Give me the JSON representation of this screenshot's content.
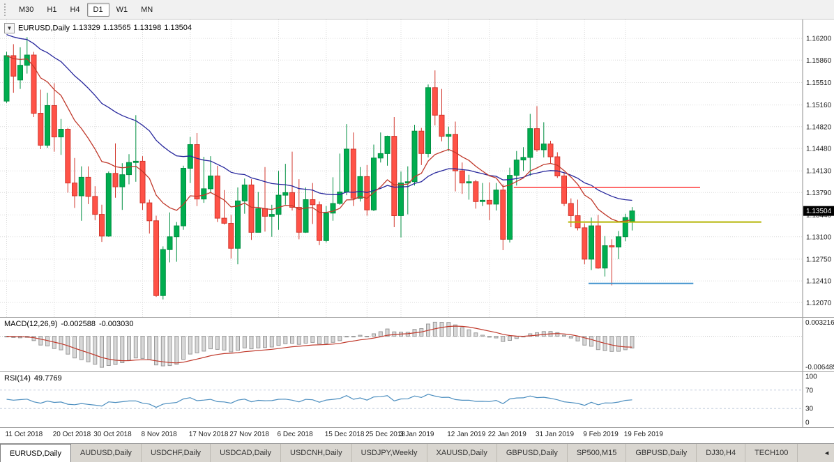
{
  "toolbar": {
    "timeframes": [
      {
        "label": "M30",
        "active": false
      },
      {
        "label": "H1",
        "active": false
      },
      {
        "label": "H4",
        "active": false
      },
      {
        "label": "D1",
        "active": true
      },
      {
        "label": "W1",
        "active": false
      },
      {
        "label": "MN",
        "active": false
      }
    ]
  },
  "chart_header": {
    "dropdown_icon": "▼",
    "symbol": "EURUSD,Daily",
    "open": "1.13329",
    "high": "1.13565",
    "low": "1.13198",
    "close": "1.13504"
  },
  "price_axis": {
    "labels": [
      "1.16200",
      "1.15860",
      "1.15510",
      "1.15160",
      "1.14820",
      "1.14480",
      "1.14130",
      "1.13790",
      "1.13440",
      "1.13100",
      "1.12750",
      "1.12410",
      "1.12070"
    ],
    "badge": "1.13504",
    "badge_bg": "#000000",
    "badge_fg": "#ffffff"
  },
  "time_axis": {
    "labels": [
      {
        "text": "11 Oct 2018",
        "candle_index": 0
      },
      {
        "text": "20 Oct 2018",
        "candle_index": 7
      },
      {
        "text": "30 Oct 2018",
        "candle_index": 13
      },
      {
        "text": "8 Nov 2018",
        "candle_index": 20
      },
      {
        "text": "17 Nov 2018",
        "candle_index": 27
      },
      {
        "text": "27 Nov 2018",
        "candle_index": 33
      },
      {
        "text": "6 Dec 2018",
        "candle_index": 40
      },
      {
        "text": "15 Dec 2018",
        "candle_index": 47
      },
      {
        "text": "25 Dec 2018",
        "candle_index": 53
      },
      {
        "text": "3 Jan 2019",
        "candle_index": 58
      },
      {
        "text": "12 Jan 2019",
        "candle_index": 65
      },
      {
        "text": "22 Jan 2019",
        "candle_index": 71
      },
      {
        "text": "31 Jan 2019",
        "candle_index": 78
      },
      {
        "text": "9 Feb 2019",
        "candle_index": 85
      },
      {
        "text": "19 Feb 2019",
        "candle_index": 91
      }
    ]
  },
  "chart_data": {
    "type": "candlestick",
    "title": "EURUSD,Daily",
    "ylim": [
      1.11845,
      1.16495
    ],
    "colors": {
      "up_fill": "#00AD4F",
      "up_stroke": "#008F41",
      "down_fill": "#FF5247",
      "down_stroke": "#D2372D",
      "grid": "#dcdcdc",
      "background": "#ffffff"
    },
    "candles": [
      [
        1.1522,
        1.1599,
        1.1519,
        1.1593
      ],
      [
        1.1593,
        1.1611,
        1.1535,
        1.1561
      ],
      [
        1.1555,
        1.1606,
        1.1541,
        1.1578
      ],
      [
        1.1578,
        1.1622,
        1.1565,
        1.1594
      ],
      [
        1.1594,
        1.1599,
        1.1497,
        1.1503
      ],
      [
        1.1503,
        1.154,
        1.1447,
        1.1453
      ],
      [
        1.1453,
        1.1535,
        1.1449,
        1.1515
      ],
      [
        1.1515,
        1.155,
        1.1443,
        1.1466
      ],
      [
        1.1466,
        1.1494,
        1.1438,
        1.1478
      ],
      [
        1.1478,
        1.148,
        1.1379,
        1.1394
      ],
      [
        1.1394,
        1.1433,
        1.1355,
        1.1374
      ],
      [
        1.1374,
        1.142,
        1.1335,
        1.1403
      ],
      [
        1.1403,
        1.142,
        1.1361,
        1.1373
      ],
      [
        1.1373,
        1.1389,
        1.1336,
        1.1345
      ],
      [
        1.1345,
        1.136,
        1.1302,
        1.1311
      ],
      [
        1.1311,
        1.1412,
        1.131,
        1.1409
      ],
      [
        1.1409,
        1.1456,
        1.1371,
        1.1388
      ],
      [
        1.1388,
        1.1425,
        1.1352,
        1.1407
      ],
      [
        1.1407,
        1.1439,
        1.1392,
        1.1426
      ],
      [
        1.1426,
        1.15,
        1.1396,
        1.1428
      ],
      [
        1.1428,
        1.1436,
        1.1352,
        1.1363
      ],
      [
        1.1363,
        1.1368,
        1.1315,
        1.1335
      ],
      [
        1.1335,
        1.1343,
        1.1216,
        1.1218
      ],
      [
        1.1218,
        1.1295,
        1.1212,
        1.129
      ],
      [
        1.129,
        1.1348,
        1.127,
        1.131
      ],
      [
        1.131,
        1.1333,
        1.1271,
        1.1327
      ],
      [
        1.1327,
        1.1421,
        1.1321,
        1.1417
      ],
      [
        1.1417,
        1.1466,
        1.1394,
        1.1454
      ],
      [
        1.1454,
        1.1472,
        1.1358,
        1.1369
      ],
      [
        1.1369,
        1.1435,
        1.1363,
        1.1385
      ],
      [
        1.1385,
        1.1436,
        1.1378,
        1.1405
      ],
      [
        1.1405,
        1.1421,
        1.1333,
        1.1339
      ],
      [
        1.1339,
        1.1383,
        1.1329,
        1.1331
      ],
      [
        1.1331,
        1.1344,
        1.1276,
        1.1292
      ],
      [
        1.1292,
        1.1387,
        1.1267,
        1.1366
      ],
      [
        1.1366,
        1.1401,
        1.1346,
        1.1391
      ],
      [
        1.1391,
        1.14,
        1.1305,
        1.1317
      ],
      [
        1.1317,
        1.138,
        1.1317,
        1.1354
      ],
      [
        1.1354,
        1.1419,
        1.1318,
        1.1342
      ],
      [
        1.1342,
        1.136,
        1.131,
        1.1345
      ],
      [
        1.1345,
        1.1413,
        1.1321,
        1.1375
      ],
      [
        1.1375,
        1.1424,
        1.136,
        1.1379
      ],
      [
        1.1379,
        1.1443,
        1.1351,
        1.1356
      ],
      [
        1.1356,
        1.14,
        1.1306,
        1.1317
      ],
      [
        1.1317,
        1.1387,
        1.1316,
        1.1368
      ],
      [
        1.1368,
        1.1394,
        1.133,
        1.136
      ],
      [
        1.136,
        1.1365,
        1.1297,
        1.1304
      ],
      [
        1.1304,
        1.1358,
        1.1301,
        1.1347
      ],
      [
        1.1347,
        1.1403,
        1.1335,
        1.1362
      ],
      [
        1.1362,
        1.144,
        1.136,
        1.138
      ],
      [
        1.138,
        1.1486,
        1.1375,
        1.1447
      ],
      [
        1.1447,
        1.1473,
        1.1358,
        1.137
      ],
      [
        1.137,
        1.1419,
        1.1365,
        1.1404
      ],
      [
        1.1404,
        1.1422,
        1.1343,
        1.1352
      ],
      [
        1.1352,
        1.1454,
        1.135,
        1.1433
      ],
      [
        1.1433,
        1.1473,
        1.1426,
        1.144
      ],
      [
        1.144,
        1.1468,
        1.1421,
        1.1467
      ],
      [
        1.1467,
        1.1497,
        1.1325,
        1.1343
      ],
      [
        1.1343,
        1.1412,
        1.1309,
        1.1394
      ],
      [
        1.1394,
        1.142,
        1.1345,
        1.1396
      ],
      [
        1.1396,
        1.1485,
        1.139,
        1.1475
      ],
      [
        1.1475,
        1.148,
        1.1422,
        1.144
      ],
      [
        1.144,
        1.1548,
        1.1434,
        1.1543
      ],
      [
        1.1543,
        1.157,
        1.1484,
        1.15
      ],
      [
        1.15,
        1.1541,
        1.1459,
        1.1467
      ],
      [
        1.1467,
        1.1482,
        1.1444,
        1.147
      ],
      [
        1.147,
        1.149,
        1.1381,
        1.1413
      ],
      [
        1.1413,
        1.1426,
        1.1377,
        1.1394
      ],
      [
        1.1394,
        1.1407,
        1.1368,
        1.1396
      ],
      [
        1.1396,
        1.1399,
        1.1354,
        1.1365
      ],
      [
        1.1365,
        1.1394,
        1.1358,
        1.1367
      ],
      [
        1.1367,
        1.1395,
        1.1336,
        1.1361
      ],
      [
        1.1361,
        1.1394,
        1.1351,
        1.1383
      ],
      [
        1.1383,
        1.1392,
        1.1289,
        1.1306
      ],
      [
        1.1306,
        1.1418,
        1.1301,
        1.1406
      ],
      [
        1.1406,
        1.1444,
        1.139,
        1.143
      ],
      [
        1.143,
        1.145,
        1.1413,
        1.1434
      ],
      [
        1.1434,
        1.1502,
        1.1405,
        1.1479
      ],
      [
        1.1479,
        1.1514,
        1.1443,
        1.1446
      ],
      [
        1.1446,
        1.1489,
        1.1434,
        1.1455
      ],
      [
        1.1455,
        1.146,
        1.1425,
        1.1435
      ],
      [
        1.1435,
        1.1442,
        1.1402,
        1.1405
      ],
      [
        1.1405,
        1.1411,
        1.1358,
        1.1362
      ],
      [
        1.1362,
        1.137,
        1.1325,
        1.1343
      ],
      [
        1.1343,
        1.1368,
        1.132,
        1.1324
      ],
      [
        1.1324,
        1.1331,
        1.1267,
        1.1275
      ],
      [
        1.1275,
        1.134,
        1.1258,
        1.1327
      ],
      [
        1.1327,
        1.1344,
        1.126,
        1.1261
      ],
      [
        1.1261,
        1.1311,
        1.1248,
        1.1296
      ],
      [
        1.1296,
        1.1306,
        1.1234,
        1.1294
      ],
      [
        1.1294,
        1.1319,
        1.1275,
        1.131
      ],
      [
        1.131,
        1.1346,
        1.1303,
        1.134
      ],
      [
        1.13329,
        1.13565,
        1.13198,
        1.13504
      ]
    ],
    "moving_averages": [
      {
        "name": "ma-slow-blue",
        "method": "ema",
        "period": 34,
        "seed": 1.1628,
        "color": "#26269C"
      },
      {
        "name": "ma-fast-red",
        "method": "ema",
        "period": 13,
        "seed": 1.1593,
        "color": "#C0392B"
      }
    ],
    "horizontal_lines": [
      {
        "name": "resistance-line-red",
        "price": 1.1387,
        "from_index": 75,
        "to_index": 102,
        "color": "#FF3A3A",
        "width": 1.6
      },
      {
        "name": "support-line-yellow",
        "price": 1.1333,
        "from_index": 83,
        "to_index": 111,
        "color": "#B4B400",
        "width": 2
      },
      {
        "name": "support-line-blue",
        "price": 1.1237,
        "from_index": 86,
        "to_index": 101,
        "color": "#4293CE",
        "width": 2
      }
    ]
  },
  "macd_panel": {
    "title": "MACD(12,26,9)",
    "value_main": "-0.002588",
    "value_signal": "-0.003030",
    "params": [
      12,
      26,
      9
    ],
    "axis_max_label": "0.003216",
    "axis_min_label": "-0.006485",
    "scale_max": 0.0038,
    "scale_min": -0.0072,
    "histogram_fill": "#d8d8d8",
    "histogram_stroke": "#9a9a9a",
    "signal_color": "#C0392B"
  },
  "rsi_panel": {
    "title": "RSI(14)",
    "value": "49.7769",
    "period": 14,
    "axis_labels": [
      "100",
      "70",
      "30",
      "0"
    ],
    "levels": [
      70,
      30
    ],
    "range": [
      0,
      100
    ],
    "line_color": "#4C8EBF"
  },
  "tabs": [
    {
      "label": "EURUSD,Daily",
      "active": true
    },
    {
      "label": "AUDUSD,Daily",
      "active": false
    },
    {
      "label": "USDCHF,Daily",
      "active": false
    },
    {
      "label": "USDCAD,Daily",
      "active": false
    },
    {
      "label": "USDCNH,Daily",
      "active": false
    },
    {
      "label": "USDJPY,Weekly",
      "active": false
    },
    {
      "label": "XAUUSD,Daily",
      "active": false
    },
    {
      "label": "GBPUSD,Daily",
      "active": false
    },
    {
      "label": "SP500,M15",
      "active": false
    },
    {
      "label": "GBPUSD,Daily",
      "active": false
    },
    {
      "label": "DJ30,H4",
      "active": false
    },
    {
      "label": "TECH100",
      "active": false
    }
  ],
  "tabbar": {
    "scroll_icon": "◄"
  }
}
